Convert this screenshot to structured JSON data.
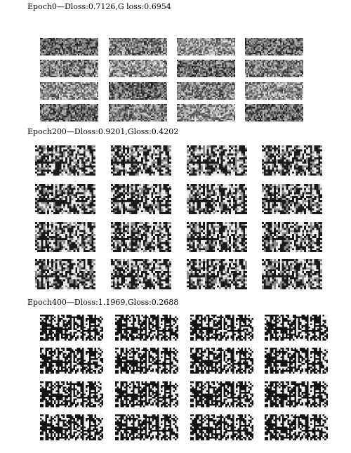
{
  "figure": {
    "sections": [
      {
        "caption": "Epoch0—Dloss:0.7126,G loss:0.6954",
        "style": "noise",
        "rows": 4,
        "cols": 4
      },
      {
        "caption": "Epoch200—Dloss:0.9201,Gloss:0.4202",
        "style": "pattern-soft",
        "rows": 4,
        "cols": 4
      },
      {
        "caption": "Epoch400—Dloss:1.1969,Gloss:0.2688",
        "style": "pattern-sharp",
        "rows": 4,
        "cols": 4
      }
    ]
  }
}
